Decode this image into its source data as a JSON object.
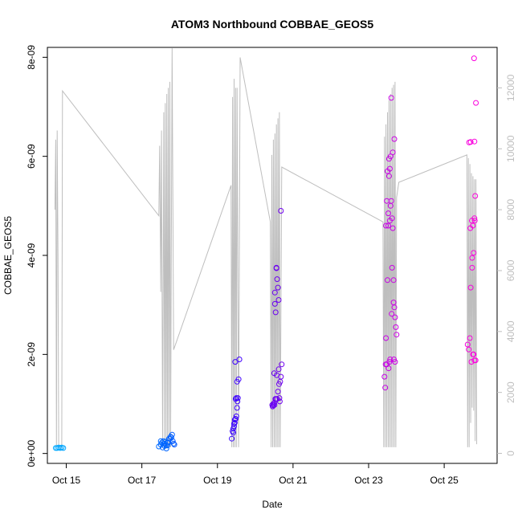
{
  "chart_data": {
    "type": "scatter",
    "title": "ATOM3 Northbound COBBAE_GEOS5",
    "xlabel": "Date",
    "ylabel": "COBBAE_GEOS5",
    "xlim": [
      14.5,
      26.4
    ],
    "ylim": [
      -2e-10,
      8.2e-09
    ],
    "y2lim": [
      -330,
      13330
    ],
    "x_ticks": [
      {
        "value": 15,
        "label": "Oct 15"
      },
      {
        "value": 17,
        "label": "Oct 17"
      },
      {
        "value": 19,
        "label": "Oct 19"
      },
      {
        "value": 21,
        "label": "Oct 21"
      },
      {
        "value": 23,
        "label": "Oct 23"
      },
      {
        "value": 25,
        "label": "Oct 25"
      }
    ],
    "y_ticks": [
      {
        "value": 0,
        "label": "0e+00"
      },
      {
        "value": 2e-09,
        "label": "2e-09"
      },
      {
        "value": 4e-09,
        "label": "4e-09"
      },
      {
        "value": 6e-09,
        "label": "6e-09"
      },
      {
        "value": 8e-09,
        "label": "8e-09"
      }
    ],
    "y2_ticks": [
      {
        "value": 0,
        "label": "0"
      },
      {
        "value": 2000,
        "label": "2000"
      },
      {
        "value": 4000,
        "label": "4000"
      },
      {
        "value": 6000,
        "label": "6000"
      },
      {
        "value": 8000,
        "label": "8000"
      },
      {
        "value": 10000,
        "label": "10000"
      },
      {
        "value": 12000,
        "label": "12000"
      }
    ],
    "points_series": {
      "name": "COBBAE_GEOS5",
      "x": [
        14.72,
        14.76,
        14.8,
        14.84,
        14.88,
        14.92,
        17.45,
        17.5,
        17.53,
        17.57,
        17.6,
        17.64,
        17.68,
        17.72,
        17.76,
        17.8,
        17.84,
        17.5,
        17.55,
        17.6,
        17.65,
        17.7,
        17.75,
        17.78,
        17.82,
        17.86,
        17.62,
        17.58,
        17.68,
        19.38,
        19.4,
        19.42,
        19.44,
        19.46,
        19.48,
        19.5,
        19.52,
        19.54,
        19.56,
        19.58,
        19.42,
        19.46,
        19.5,
        19.52,
        19.48,
        19.44,
        19.47,
        19.53,
        20.45,
        20.48,
        20.5,
        20.52,
        20.54,
        20.56,
        20.58,
        20.6,
        20.62,
        20.64,
        20.66,
        20.68,
        20.7,
        20.46,
        20.5,
        20.55,
        20.6,
        20.52,
        20.56,
        20.62,
        20.65,
        20.48,
        20.51,
        20.58,
        20.63,
        20.68,
        20.57,
        20.53,
        23.42,
        23.44,
        23.46,
        23.48,
        23.5,
        23.52,
        23.54,
        23.56,
        23.58,
        23.6,
        23.62,
        23.64,
        23.66,
        23.68,
        23.7,
        23.72,
        23.74,
        23.46,
        23.5,
        23.54,
        23.58,
        23.62,
        23.66,
        23.7,
        23.48,
        23.52,
        23.56,
        23.6,
        23.64,
        23.68,
        23.45,
        23.55,
        23.57,
        23.61,
        23.67,
        23.53,
        25.62,
        25.65,
        25.68,
        25.7,
        25.72,
        25.74,
        25.76,
        25.78,
        25.8,
        25.82,
        25.84,
        25.66,
        25.7,
        25.74,
        25.78,
        25.8,
        25.83,
        25.69,
        25.73,
        25.76,
        25.79,
        25.8,
        25.81
      ],
      "y": [
        1.1e-10,
        1.1e-10,
        1.2e-10,
        1.1e-10,
        1.2e-10,
        1.1e-10,
        1.4e-10,
        1.8e-10,
        2.2e-10,
        2.5e-10,
        2e-10,
        1.6e-10,
        2.2e-10,
        3e-10,
        3.4e-10,
        3.8e-10,
        2e-10,
        2.5e-10,
        1.2e-10,
        1.5e-10,
        1e-10,
        2.2e-10,
        3e-10,
        3.2e-10,
        2.5e-10,
        1.8e-10,
        2.4e-10,
        2e-10,
        1.6e-10,
        3e-10,
        4.5e-10,
        5e-10,
        5.5e-10,
        6.2e-10,
        7e-10,
        7.5e-10,
        9.2e-10,
        1.12e-09,
        1.5e-09,
        1.9e-09,
        4.2e-10,
        6.8e-10,
        1.12e-09,
        1.45e-09,
        1.1e-09,
        6e-10,
        1.85e-09,
        1.05e-09,
        9.8e-10,
        1e-09,
        1.62e-09,
        3.25e-09,
        2.85e-09,
        3.75e-09,
        3.52e-09,
        3.35e-09,
        3.1e-09,
        1.12e-09,
        1.45e-09,
        1.55e-09,
        1.8e-09,
        9.5e-10,
        1.02e-09,
        1.1e-09,
        1.25e-09,
        3.02e-09,
        3.74e-09,
        1.7e-09,
        1.05e-09,
        9.7e-10,
        9.8e-10,
        1.1e-09,
        1.4e-09,
        4.9e-09,
        1.58e-09,
        1.1e-09,
        1.55e-09,
        1.33e-09,
        2.33e-09,
        1.8e-09,
        3.5e-09,
        4.85e-09,
        5.6e-09,
        5.75e-09,
        6e-09,
        5.1e-09,
        4.75e-09,
        4.55e-09,
        3.5e-09,
        2.95e-09,
        2.75e-09,
        2.55e-09,
        2.4e-09,
        4.6e-09,
        5.7e-09,
        5.95e-09,
        5e-09,
        3.75e-09,
        3.05e-09,
        1.85e-09,
        5.1e-09,
        4.6e-09,
        4.7e-09,
        7.18e-09,
        6.08e-09,
        6.35e-09,
        1.8e-09,
        1.85e-09,
        1.9e-09,
        2.82e-09,
        1.9e-09,
        1.72e-09,
        2.2e-09,
        2.1e-09,
        2.33e-09,
        3.35e-09,
        1.85e-09,
        3.75e-09,
        4.6e-09,
        4.05e-09,
        4.75e-09,
        5.2e-09,
        7.08e-09,
        6.28e-09,
        6.29e-09,
        3.95e-09,
        2e-09,
        1.88e-09,
        1.88e-09,
        4.55e-09,
        4.7e-09,
        2e-09,
        7.98e-09,
        6.3e-09,
        4.7e-09
      ]
    },
    "line_series": {
      "name": "right-axis trace",
      "color": "#bebebe",
      "x": [
        14.7,
        14.72,
        14.74,
        14.76,
        14.78,
        14.8,
        14.82,
        14.84,
        14.86,
        14.88,
        14.9,
        17.45,
        17.47,
        17.5,
        17.52,
        17.55,
        17.58,
        17.6,
        17.62,
        17.64,
        17.66,
        17.68,
        17.7,
        17.72,
        17.74,
        17.76,
        17.8,
        17.84,
        19.36,
        19.38,
        19.4,
        19.42,
        19.44,
        19.46,
        19.48,
        19.5,
        19.52,
        19.56,
        19.6,
        20.4,
        20.42,
        20.44,
        20.46,
        20.48,
        20.5,
        20.52,
        20.54,
        20.56,
        20.58,
        20.6,
        20.62,
        20.64,
        20.66,
        20.7,
        23.38,
        23.4,
        23.42,
        23.44,
        23.46,
        23.48,
        23.5,
        23.52,
        23.54,
        23.56,
        23.58,
        23.6,
        23.62,
        23.64,
        23.66,
        23.68,
        23.7,
        23.72,
        23.74,
        23.8,
        25.6,
        25.62,
        25.64,
        25.66,
        25.68,
        25.7,
        25.72,
        25.74,
        25.76,
        25.78,
        25.8,
        25.82,
        25.84,
        25.86
      ],
      "y": [
        8000,
        10300,
        200,
        10600,
        6500,
        200,
        200,
        200,
        200,
        200,
        11900,
        7800,
        10100,
        5300,
        10600,
        200,
        11200,
        200,
        11500,
        200,
        11800,
        200,
        12000,
        200,
        12200,
        200,
        13300,
        3400,
        8800,
        200,
        11700,
        200,
        12300,
        200,
        12000,
        200,
        12000,
        200,
        13000,
        7600,
        200,
        9800,
        200,
        10300,
        200,
        10500,
        200,
        10800,
        200,
        11000,
        200,
        11200,
        200,
        9400,
        7600,
        200,
        10400,
        200,
        10800,
        200,
        11200,
        200,
        11600,
        200,
        11800,
        200,
        12000,
        200,
        12100,
        200,
        12200,
        200,
        8400,
        8900,
        9800,
        200,
        9700,
        200,
        9500,
        1000,
        9200,
        1500,
        9100,
        1400,
        9000,
        400,
        9000,
        300
      ]
    }
  }
}
